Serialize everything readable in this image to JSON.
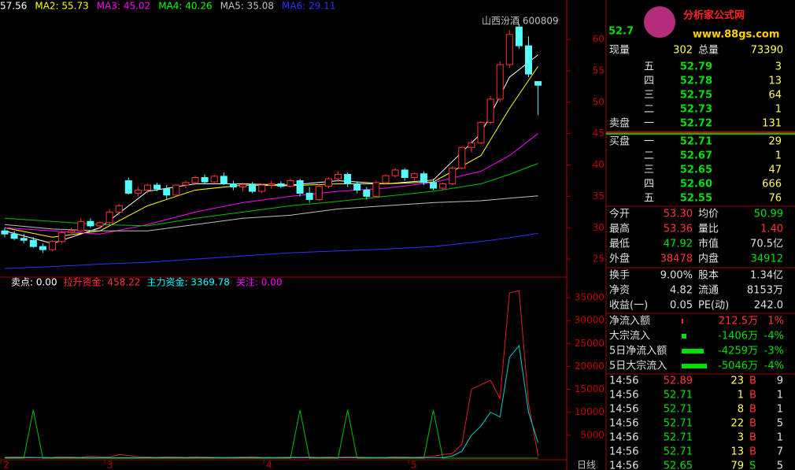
{
  "price_chart": {
    "ma_labels": [
      {
        "text": "57.56",
        "color": "#ffffff"
      },
      {
        "text": "MA2: 55.73",
        "color": "#ffff00"
      },
      {
        "text": "MA3: 45.02",
        "color": "#ff00ff"
      },
      {
        "text": "MA4: 40.26",
        "color": "#00ff00"
      },
      {
        "text": "MA5: 35.08",
        "color": "#c0c0c0"
      },
      {
        "text": "MA6: 29.11",
        "color": "#3030ff"
      }
    ],
    "stock": "山西汾酒 600809",
    "ylim": [
      22,
      66.3
    ],
    "yticks": [
      25,
      30,
      35,
      40,
      45,
      50,
      55,
      60
    ],
    "candles": [
      [
        29.5,
        30,
        28.5,
        29
      ],
      [
        29,
        29.5,
        28,
        28.3
      ],
      [
        28.3,
        29,
        27.5,
        28
      ],
      [
        28,
        28.5,
        26.8,
        27
      ],
      [
        27,
        27.5,
        26,
        26.5
      ],
      [
        26.5,
        28,
        26.3,
        27.8
      ],
      [
        27.8,
        29.5,
        27.5,
        29.2
      ],
      [
        29.2,
        30,
        28.8,
        29.5
      ],
      [
        29.5,
        31.5,
        29.3,
        31
      ],
      [
        31,
        31.5,
        30,
        30.3
      ],
      [
        30.3,
        31,
        29.8,
        30.8
      ],
      [
        30.8,
        33,
        30.5,
        32.5
      ],
      [
        32.5,
        33.8,
        32,
        33.5
      ],
      [
        37.5,
        38,
        35.3,
        35.5
      ],
      [
        35.5,
        36.5,
        35,
        36
      ],
      [
        36,
        37,
        35.5,
        36.8
      ],
      [
        36.8,
        37.2,
        35.8,
        36.2
      ],
      [
        36.2,
        36.8,
        34.5,
        35.2
      ],
      [
        35.2,
        37,
        35,
        36.8
      ],
      [
        36.8,
        37.5,
        36.3,
        37.2
      ],
      [
        37.2,
        38.3,
        36.8,
        38
      ],
      [
        38,
        38.5,
        37,
        37.3
      ],
      [
        37.3,
        38.5,
        37,
        38.2
      ],
      [
        38.2,
        38.8,
        36.8,
        37
      ],
      [
        37,
        37.5,
        36,
        36.5
      ],
      [
        36.5,
        37.2,
        35.8,
        36.9
      ],
      [
        36.9,
        37.3,
        35.5,
        35.8
      ],
      [
        35.8,
        37,
        35.5,
        36.8
      ],
      [
        36.8,
        37.5,
        36.2,
        37
      ],
      [
        37,
        37.4,
        36.3,
        36.6
      ],
      [
        36.6,
        37.8,
        36.4,
        37.5
      ],
      [
        37.5,
        37.8,
        35,
        35.5
      ],
      [
        35.5,
        36.5,
        34,
        34.5
      ],
      [
        34.5,
        37,
        34.3,
        36.6
      ],
      [
        36.6,
        38,
        36.3,
        37.8
      ],
      [
        37.8,
        39,
        37.3,
        38.5
      ],
      [
        38.5,
        38.8,
        36.5,
        37
      ],
      [
        37,
        37.4,
        35.5,
        36
      ],
      [
        36,
        36.5,
        34.5,
        35
      ],
      [
        35,
        37.5,
        34.8,
        37.2
      ],
      [
        37.2,
        38.5,
        37,
        38.3
      ],
      [
        38.3,
        39.5,
        38,
        39.2
      ],
      [
        39.2,
        39.5,
        37.5,
        38
      ],
      [
        38,
        38.8,
        37.5,
        38.6
      ],
      [
        38.6,
        39,
        36.8,
        37.2
      ],
      [
        37.2,
        37.8,
        36,
        36.3
      ],
      [
        36.3,
        37.2,
        36,
        37
      ],
      [
        37,
        39.8,
        36.8,
        39.5
      ],
      [
        39.5,
        43,
        39.3,
        42.8
      ],
      [
        42.8,
        44,
        42,
        43.5
      ],
      [
        43.5,
        47,
        43.3,
        46.8
      ],
      [
        46.8,
        51,
        46.5,
        50.5
      ],
      [
        50.5,
        56.5,
        50,
        56
      ],
      [
        56,
        61.5,
        55.5,
        60.8
      ],
      [
        62,
        62.5,
        58.5,
        59
      ],
      [
        59,
        60.5,
        54,
        54.5
      ],
      [
        53.3,
        53.36,
        47.92,
        52.71
      ]
    ],
    "ma_index": [
      0,
      5,
      10,
      15,
      20,
      25,
      30,
      35,
      40,
      45,
      50,
      53,
      56
    ],
    "ma_lines": [
      {
        "color": "#ffffff",
        "values": [
          29.5,
          27.5,
          30,
          35.8,
          37,
          37,
          36.8,
          37.5,
          37,
          37.6,
          45,
          54,
          57.56
        ]
      },
      {
        "color": "#ffff00",
        "values": [
          30,
          28.5,
          29.5,
          33.5,
          36,
          36.8,
          36.7,
          37,
          37,
          37.3,
          41.5,
          49,
          55.73
        ]
      },
      {
        "color": "#ff00ff",
        "values": [
          30,
          29.5,
          29,
          30.5,
          32.5,
          34,
          35,
          35.8,
          36.3,
          37.2,
          39,
          41.5,
          45.02
        ]
      },
      {
        "color": "#00c000",
        "values": [
          31.5,
          31,
          30.5,
          30.3,
          31.5,
          32.5,
          33.5,
          34.2,
          35,
          35.8,
          37,
          38.5,
          40.26
        ]
      },
      {
        "color": "#c0c0c0",
        "values": [
          30.5,
          29.8,
          29.5,
          29.5,
          30.5,
          31.5,
          32,
          33,
          33.5,
          34,
          34.3,
          34.7,
          35.08
        ]
      },
      {
        "color": "#3030ff",
        "values": [
          23.5,
          23.8,
          24.2,
          24.5,
          25,
          25.5,
          26,
          26.3,
          26.6,
          27,
          27.8,
          28.4,
          29.11
        ]
      }
    ]
  },
  "flow_chart": {
    "legend": [
      {
        "text": "卖点: 0.00",
        "color": "#ffffff"
      },
      {
        "text": "拉升资金: 458.22",
        "color": "#ff3030"
      },
      {
        "text": "主力资金: 3369.78",
        "color": "#00ffff"
      },
      {
        "text": "关注: 0.00",
        "color": "#ff00ff"
      }
    ],
    "ylim": [
      0,
      39800
    ],
    "yticks": [
      5000,
      10000,
      15000,
      20000,
      25000,
      30000,
      35000
    ],
    "lines": [
      {
        "color": "#00c000",
        "values": [
          0,
          0,
          0,
          10500,
          0,
          0,
          0,
          0,
          0,
          0,
          0,
          0,
          0,
          0,
          0,
          0,
          0,
          0,
          0,
          0,
          0,
          0,
          0,
          0,
          0,
          0,
          0,
          0,
          0,
          0,
          0,
          10500,
          0,
          0,
          0,
          0,
          10500,
          0,
          0,
          0,
          0,
          0,
          0,
          0,
          0,
          10500,
          0,
          0,
          0,
          0,
          0,
          0,
          0,
          0,
          0,
          0,
          0
        ]
      },
      {
        "color": "#e02020",
        "values": [
          200,
          300,
          250,
          200,
          150,
          200,
          300,
          250,
          200,
          400,
          300,
          250,
          800,
          600,
          300,
          250,
          200,
          300,
          250,
          200,
          300,
          250,
          200,
          150,
          200,
          250,
          300,
          200,
          150,
          200,
          250,
          200,
          300,
          200,
          250,
          200,
          300,
          250,
          200,
          150,
          200,
          300,
          250,
          200,
          300,
          400,
          800,
          1000,
          3000,
          15000,
          16000,
          17000,
          13000,
          36000,
          36500,
          12000,
          458.22
        ]
      },
      {
        "color": "#00d0d0",
        "values": [
          100,
          100,
          100,
          100,
          100,
          100,
          100,
          100,
          100,
          100,
          100,
          100,
          100,
          100,
          100,
          100,
          100,
          100,
          100,
          100,
          100,
          100,
          100,
          100,
          100,
          100,
          100,
          100,
          100,
          100,
          100,
          100,
          100,
          100,
          100,
          100,
          100,
          100,
          100,
          100,
          100,
          100,
          100,
          100,
          100,
          100,
          100,
          500,
          1500,
          5000,
          7000,
          10000,
          9000,
          22000,
          24500,
          10000,
          3369.78
        ]
      }
    ]
  },
  "x_labels": [
    {
      "text": "2",
      "index": -0.4
    },
    {
      "text": "3",
      "index": 10.5
    },
    {
      "text": "4",
      "index": 27.2
    },
    {
      "text": "5",
      "index": 42.4
    }
  ],
  "period": "日线",
  "panel": {
    "price": "52.7",
    "logo": "分析家公式网",
    "url": "www.88gs.com",
    "volume_row": [
      "现量",
      "302",
      "总量",
      "73390"
    ],
    "sell_label": "卖盘",
    "buy_label": "买盘",
    "asks": [
      [
        "五",
        "52.79",
        "3"
      ],
      [
        "四",
        "52.78",
        "13"
      ],
      [
        "三",
        "52.75",
        "64"
      ],
      [
        "二",
        "52.73",
        "1"
      ],
      [
        "一",
        "52.72",
        "131"
      ]
    ],
    "bids": [
      [
        "一",
        "52.71",
        "29"
      ],
      [
        "二",
        "52.67",
        "1"
      ],
      [
        "三",
        "52.65",
        "47"
      ],
      [
        "四",
        "52.60",
        "666"
      ],
      [
        "五",
        "52.55",
        "76"
      ]
    ],
    "quotes": [
      [
        "今开",
        "53.30",
        "均价",
        "50.99"
      ],
      [
        "最高",
        "53.36",
        "量比",
        "1.40"
      ],
      [
        "最低",
        "47.92",
        "市值",
        "70.5亿"
      ],
      [
        "外盘",
        "38478",
        "内盘",
        "34912"
      ]
    ],
    "stats": [
      [
        "换手",
        "9.00%",
        "股本",
        "1.34亿"
      ],
      [
        "净资",
        "4.82",
        "流通",
        "8153万"
      ],
      [
        "收益(一)",
        "0.05",
        "PE(动)",
        "242.0"
      ]
    ],
    "flows": [
      [
        "净流入额",
        "212.5万",
        "1%"
      ],
      [
        "大宗流入",
        "-1406万",
        "-4%"
      ],
      [
        "5日净流入额",
        "-4259万",
        "-3%"
      ],
      [
        "5日大宗流入",
        "-5046万",
        "-4%"
      ]
    ],
    "trades": [
      [
        "14:56",
        "52.89",
        "23",
        "B",
        "9"
      ],
      [
        "14:56",
        "52.71",
        "1",
        "B",
        "1"
      ],
      [
        "14:56",
        "52.71",
        "8",
        "B",
        "1"
      ],
      [
        "14:56",
        "52.71",
        "22",
        "B",
        "5"
      ],
      [
        "14:56",
        "52.71",
        "3",
        "B",
        "1"
      ],
      [
        "14:56",
        "52.71",
        "13",
        "B",
        "7"
      ],
      [
        "14:56",
        "52.65",
        "79",
        "S",
        "5"
      ]
    ]
  }
}
